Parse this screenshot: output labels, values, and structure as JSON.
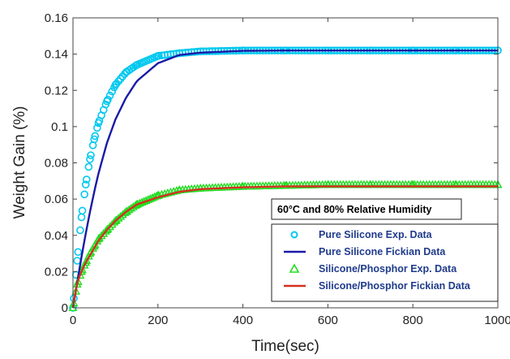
{
  "chart_data": {
    "type": "line",
    "xlabel": "Time(sec)",
    "ylabel": "Weight Gain (%)",
    "xlim": [
      0,
      1000
    ],
    "ylim": [
      0,
      0.16
    ],
    "x_ticks": [
      "0",
      "200",
      "400",
      "600",
      "800",
      "1000"
    ],
    "y_ticks": [
      "0",
      "0.02",
      "0.04",
      "0.06",
      "0.08",
      "0.1",
      "0.12",
      "0.14",
      "0.16"
    ],
    "grid": false,
    "legend_position": "bottom-right",
    "annotation": "60°C and 80% Relative Humidity",
    "x": [
      0,
      10,
      20,
      30,
      40,
      50,
      60,
      80,
      100,
      125,
      150,
      200,
      250,
      300,
      400,
      500,
      600,
      700,
      800,
      900,
      1000
    ],
    "series": [
      {
        "name": "Pure Silicone Exp. Data",
        "kind": "circle-markers",
        "color": "#00c8f0",
        "values": [
          0.0,
          0.026,
          0.05,
          0.068,
          0.082,
          0.093,
          0.102,
          0.114,
          0.123,
          0.13,
          0.134,
          0.139,
          0.1405,
          0.1415,
          0.142,
          0.142,
          0.142,
          0.142,
          0.142,
          0.142,
          0.142
        ]
      },
      {
        "name": "Pure Silicone Fickian Data",
        "kind": "line",
        "color": "#1a1aa8",
        "values": [
          0.0,
          0.014,
          0.028,
          0.041,
          0.053,
          0.064,
          0.074,
          0.091,
          0.104,
          0.116,
          0.125,
          0.135,
          0.1395,
          0.1408,
          0.1418,
          0.142,
          0.142,
          0.142,
          0.142,
          0.142,
          0.142
        ]
      },
      {
        "name": "Silicone/Phosphor Exp. Data",
        "kind": "triangle-markers",
        "color": "#22dd22",
        "values": [
          0.0,
          0.013,
          0.02,
          0.025,
          0.03,
          0.034,
          0.038,
          0.043,
          0.048,
          0.053,
          0.057,
          0.062,
          0.065,
          0.066,
          0.067,
          0.0675,
          0.068,
          0.068,
          0.068,
          0.068,
          0.068
        ]
      },
      {
        "name": "Silicone/Phosphor Fickian Data",
        "kind": "line",
        "color": "#d43020",
        "values": [
          0.0,
          0.014,
          0.02,
          0.025,
          0.029,
          0.033,
          0.037,
          0.043,
          0.048,
          0.053,
          0.057,
          0.061,
          0.064,
          0.0655,
          0.0665,
          0.067,
          0.067,
          0.067,
          0.067,
          0.067,
          0.067
        ]
      }
    ]
  }
}
